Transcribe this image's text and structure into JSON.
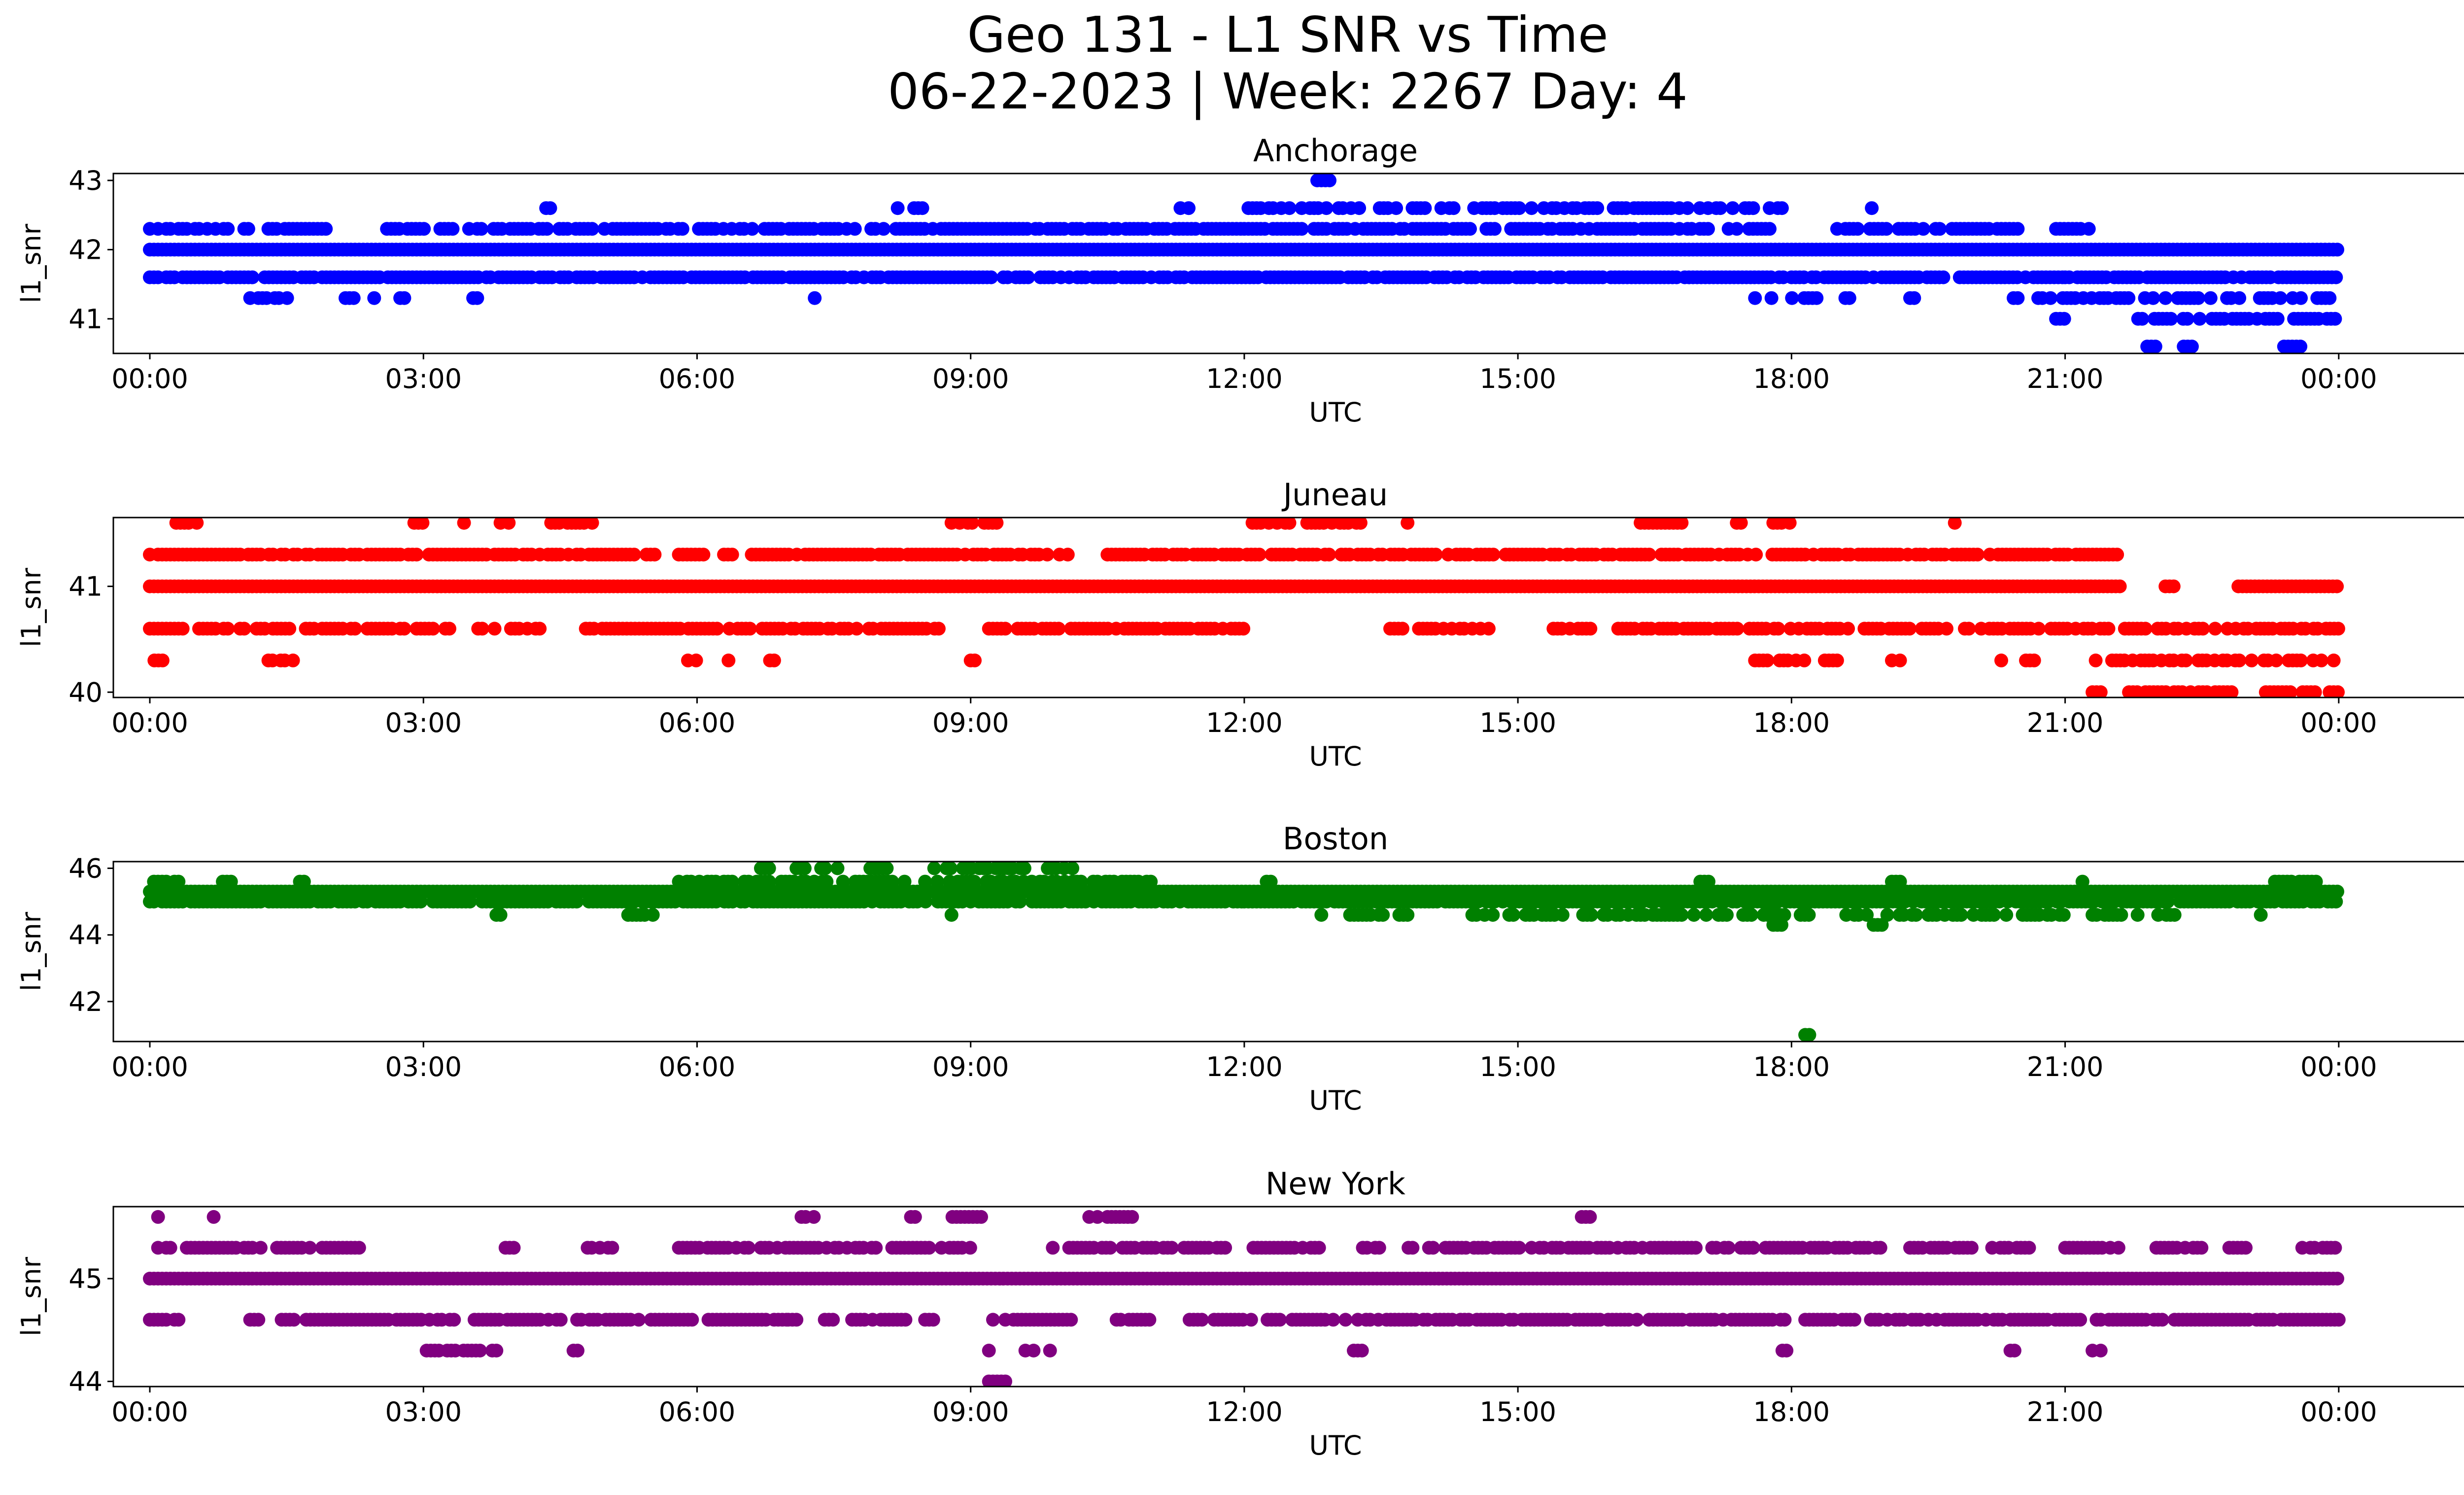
{
  "figure": {
    "title_line1": "Geo 131 - L1 SNR vs Time",
    "title_line2": "06-22-2023 | Week: 2267 Day: 4"
  },
  "chart_data": [
    {
      "type": "scatter",
      "title": "Anchorage",
      "xlabel": "UTC",
      "ylabel": "l1_snr",
      "color": "#0000ff",
      "x_range_hours": [
        -0.4,
        26.4
      ],
      "ylim": [
        40.5,
        43.1
      ],
      "yticks": [
        41,
        42,
        43
      ],
      "xtick_labels": [
        "00:00",
        "03:00",
        "06:00",
        "09:00",
        "12:00",
        "15:00",
        "18:00",
        "21:00",
        "00:00"
      ],
      "grid": false,
      "levels": [
        {
          "y": 42.0,
          "segments": [
            [
              0.0,
              24.0
            ]
          ],
          "density": 1.0
        },
        {
          "y": 41.6,
          "segments": [
            [
              0.0,
              21.0
            ],
            [
              21.0,
              24.0
            ]
          ],
          "density": 0.85
        },
        {
          "y": 42.3,
          "segments": [
            [
              0.0,
              1.1
            ],
            [
              1.3,
              2.0
            ],
            [
              2.6,
              12.0
            ],
            [
              12.0,
              17.8
            ],
            [
              18.5,
              20.5
            ],
            [
              20.9,
              21.3
            ]
          ],
          "density": 0.75
        },
        {
          "y": 41.3,
          "segments": [
            [
              1.1,
              1.6
            ],
            [
              2.1,
              2.6
            ],
            [
              2.7,
              2.8
            ],
            [
              3.5,
              3.6
            ],
            [
              7.2,
              7.3
            ],
            [
              17.6,
              18.3
            ],
            [
              18.5,
              18.7
            ],
            [
              19.3,
              19.4
            ],
            [
              20.3,
              24.0
            ]
          ],
          "density": 0.5
        },
        {
          "y": 41.0,
          "segments": [
            [
              20.9,
              21.0
            ],
            [
              21.8,
              24.0
            ]
          ],
          "density": 0.7
        },
        {
          "y": 42.6,
          "segments": [
            [
              4.0,
              4.1
            ],
            [
              4.3,
              4.4
            ],
            [
              8.2,
              8.5
            ],
            [
              11.3,
              11.4
            ],
            [
              12.0,
              18.0
            ],
            [
              18.7,
              18.9
            ]
          ],
          "density": 0.55
        },
        {
          "y": 43.0,
          "segments": [
            [
              12.8,
              12.95
            ]
          ],
          "density": 1.0
        },
        {
          "y": 40.6,
          "segments": [
            [
              21.9,
              22.0
            ],
            [
              22.3,
              22.4
            ],
            [
              23.4,
              23.6
            ]
          ],
          "density": 1.0
        }
      ]
    },
    {
      "type": "scatter",
      "title": "Juneau",
      "xlabel": "UTC",
      "ylabel": "l1_snr",
      "color": "#ff0000",
      "x_range_hours": [
        -0.4,
        26.4
      ],
      "ylim": [
        39.95,
        41.65
      ],
      "yticks": [
        40,
        41
      ],
      "xtick_labels": [
        "00:00",
        "03:00",
        "06:00",
        "09:00",
        "12:00",
        "15:00",
        "18:00",
        "21:00",
        "00:00"
      ],
      "grid": false,
      "levels": [
        {
          "y": 41.0,
          "segments": [
            [
              0.0,
              21.6
            ],
            [
              22.1,
              22.2
            ],
            [
              22.9,
              24.0
            ]
          ],
          "density": 1.0
        },
        {
          "y": 41.3,
          "segments": [
            [
              0.0,
              5.6
            ],
            [
              5.8,
              6.4
            ],
            [
              6.6,
              10.1
            ],
            [
              10.5,
              21.6
            ]
          ],
          "density": 0.8
        },
        {
          "y": 40.6,
          "segments": [
            [
              0.0,
              3.3
            ],
            [
              3.6,
              4.3
            ],
            [
              4.6,
              8.8
            ],
            [
              9.2,
              12.0
            ],
            [
              13.6,
              14.8
            ],
            [
              15.3,
              15.8
            ],
            [
              16.1,
              19.7
            ],
            [
              19.9,
              24.0
            ]
          ],
          "density": 0.75
        },
        {
          "y": 40.3,
          "segments": [
            [
              0.05,
              0.15
            ],
            [
              1.3,
              1.6
            ],
            [
              5.9,
              6.2
            ],
            [
              6.3,
              6.4
            ],
            [
              6.8,
              6.9
            ],
            [
              9.0,
              9.1
            ],
            [
              17.6,
              18.5
            ],
            [
              19.1,
              19.2
            ],
            [
              20.3,
              20.8
            ],
            [
              21.2,
              24.0
            ]
          ],
          "density": 0.6
        },
        {
          "y": 40.0,
          "segments": [
            [
              21.3,
              21.4
            ],
            [
              21.7,
              22.9
            ],
            [
              23.2,
              23.8
            ],
            [
              23.9,
              24.0
            ]
          ],
          "density": 0.8
        },
        {
          "y": 41.6,
          "segments": [
            [
              0.2,
              0.6
            ],
            [
              2.9,
              3.0
            ],
            [
              3.4,
              3.5
            ],
            [
              3.8,
              4.0
            ],
            [
              4.4,
              5.0
            ],
            [
              8.7,
              9.3
            ],
            [
              12.0,
              12.5
            ],
            [
              12.6,
              13.3
            ],
            [
              13.7,
              13.8
            ],
            [
              16.3,
              16.8
            ],
            [
              17.4,
              17.5
            ],
            [
              17.8,
              18.0
            ],
            [
              19.7,
              19.8
            ]
          ],
          "density": 0.7
        }
      ]
    },
    {
      "type": "scatter",
      "title": "Boston",
      "xlabel": "UTC",
      "ylabel": "l1_snr",
      "color": "#008000",
      "x_range_hours": [
        -0.4,
        26.4
      ],
      "ylim": [
        40.8,
        46.2
      ],
      "yticks": [
        42,
        44,
        46
      ],
      "xtick_labels": [
        "00:00",
        "03:00",
        "06:00",
        "09:00",
        "12:00",
        "15:00",
        "18:00",
        "21:00",
        "00:00"
      ],
      "grid": false,
      "levels": [
        {
          "y": 45.3,
          "segments": [
            [
              0.0,
              24.0
            ]
          ],
          "density": 1.0
        },
        {
          "y": 45.0,
          "segments": [
            [
              0.0,
              12.0
            ],
            [
              12.0,
              24.0
            ]
          ],
          "density": 0.9
        },
        {
          "y": 45.6,
          "segments": [
            [
              0.0,
              0.4
            ],
            [
              0.8,
              0.9
            ],
            [
              1.6,
              1.7
            ],
            [
              5.8,
              11.0
            ],
            [
              12.2,
              12.3
            ],
            [
              17.0,
              17.1
            ],
            [
              19.1,
              19.2
            ],
            [
              21.1,
              21.2
            ],
            [
              23.3,
              23.8
            ]
          ],
          "density": 0.6
        },
        {
          "y": 44.6,
          "segments": [
            [
              3.8,
              3.9
            ],
            [
              5.2,
              5.6
            ],
            [
              8.7,
              8.8
            ],
            [
              12.8,
              13.8
            ],
            [
              14.5,
              18.2
            ],
            [
              18.6,
              21.0
            ],
            [
              21.3,
              22.2
            ],
            [
              23.1,
              23.2
            ]
          ],
          "density": 0.6
        },
        {
          "y": 46.0,
          "segments": [
            [
              6.7,
              6.8
            ],
            [
              7.0,
              7.6
            ],
            [
              7.9,
              8.1
            ],
            [
              8.6,
              9.6
            ],
            [
              9.8,
              10.2
            ]
          ],
          "density": 0.6
        },
        {
          "y": 44.3,
          "segments": [
            [
              17.8,
              17.9
            ],
            [
              18.9,
              19.0
            ]
          ],
          "density": 1.0
        },
        {
          "y": 41.0,
          "segments": [
            [
              18.15,
              18.2
            ]
          ],
          "density": 1.0
        }
      ]
    },
    {
      "type": "scatter",
      "title": "New York",
      "xlabel": "UTC",
      "ylabel": "l1_snr",
      "color": "#800080",
      "x_range_hours": [
        -0.4,
        26.4
      ],
      "ylim": [
        43.95,
        45.7
      ],
      "yticks": [
        44,
        45
      ],
      "xtick_labels": [
        "00:00",
        "03:00",
        "06:00",
        "09:00",
        "12:00",
        "15:00",
        "18:00",
        "21:00",
        "00:00"
      ],
      "grid": false,
      "levels": [
        {
          "y": 45.0,
          "segments": [
            [
              0.0,
              24.0
            ]
          ],
          "density": 1.0
        },
        {
          "y": 45.3,
          "segments": [
            [
              0.0,
              2.3
            ],
            [
              3.9,
              4.0
            ],
            [
              4.8,
              5.2
            ],
            [
              5.8,
              9.0
            ],
            [
              9.9,
              11.8
            ],
            [
              12.1,
              12.9
            ],
            [
              13.3,
              13.5
            ],
            [
              13.8,
              19.0
            ],
            [
              19.3,
              20.0
            ],
            [
              20.2,
              20.7
            ],
            [
              21.0,
              21.6
            ],
            [
              22.0,
              22.5
            ],
            [
              22.8,
              23.0
            ],
            [
              23.6,
              24.0
            ]
          ],
          "density": 0.75
        },
        {
          "y": 44.6,
          "segments": [
            [
              0.0,
              0.4
            ],
            [
              1.1,
              1.2
            ],
            [
              1.4,
              7.0
            ],
            [
              7.0,
              7.1
            ],
            [
              7.4,
              7.5
            ],
            [
              7.7,
              8.3
            ],
            [
              8.5,
              8.6
            ],
            [
              9.2,
              10.1
            ],
            [
              10.6,
              11.0
            ],
            [
              11.4,
              24.0
            ]
          ],
          "density": 0.8
        },
        {
          "y": 44.3,
          "segments": [
            [
              2.9,
              3.8
            ],
            [
              4.6,
              4.7
            ],
            [
              9.2,
              9.3
            ],
            [
              9.6,
              9.9
            ],
            [
              13.2,
              13.3
            ],
            [
              17.9,
              18.0
            ],
            [
              20.4,
              20.5
            ],
            [
              21.3,
              21.4
            ]
          ],
          "density": 0.6
        },
        {
          "y": 45.6,
          "segments": [
            [
              0.0,
              0.1
            ],
            [
              0.7,
              0.8
            ],
            [
              7.1,
              7.3
            ],
            [
              8.3,
              8.4
            ],
            [
              8.8,
              9.2
            ],
            [
              10.3,
              10.4
            ],
            [
              10.5,
              10.8
            ],
            [
              15.7,
              15.8
            ]
          ],
          "density": 0.7
        },
        {
          "y": 44.0,
          "segments": [
            [
              9.2,
              9.4
            ]
          ],
          "density": 1.0
        }
      ]
    }
  ]
}
